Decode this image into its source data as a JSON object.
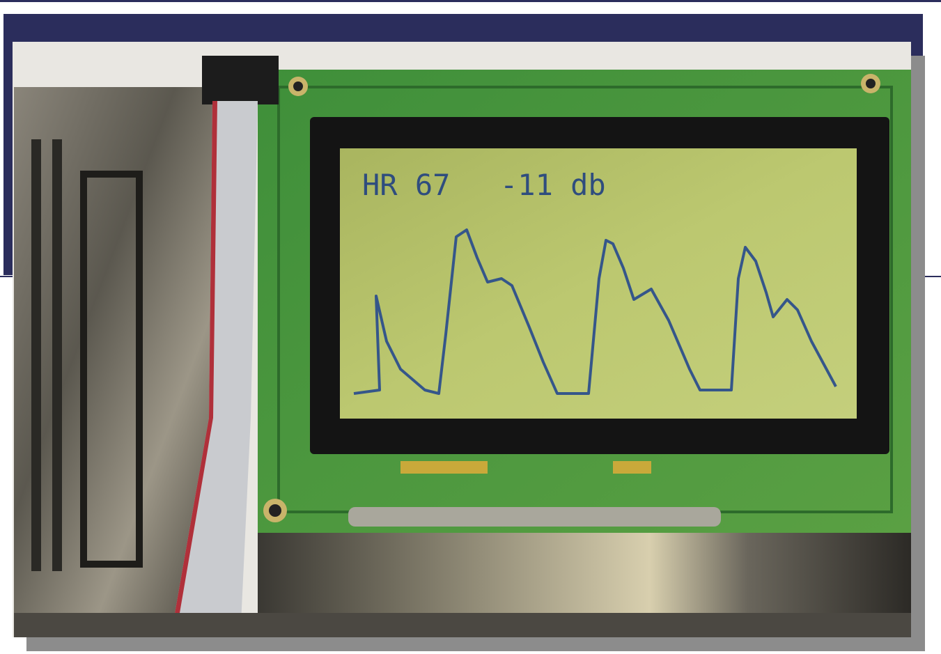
{
  "display": {
    "heart_rate": "HR 67",
    "level": "-11 db"
  }
}
